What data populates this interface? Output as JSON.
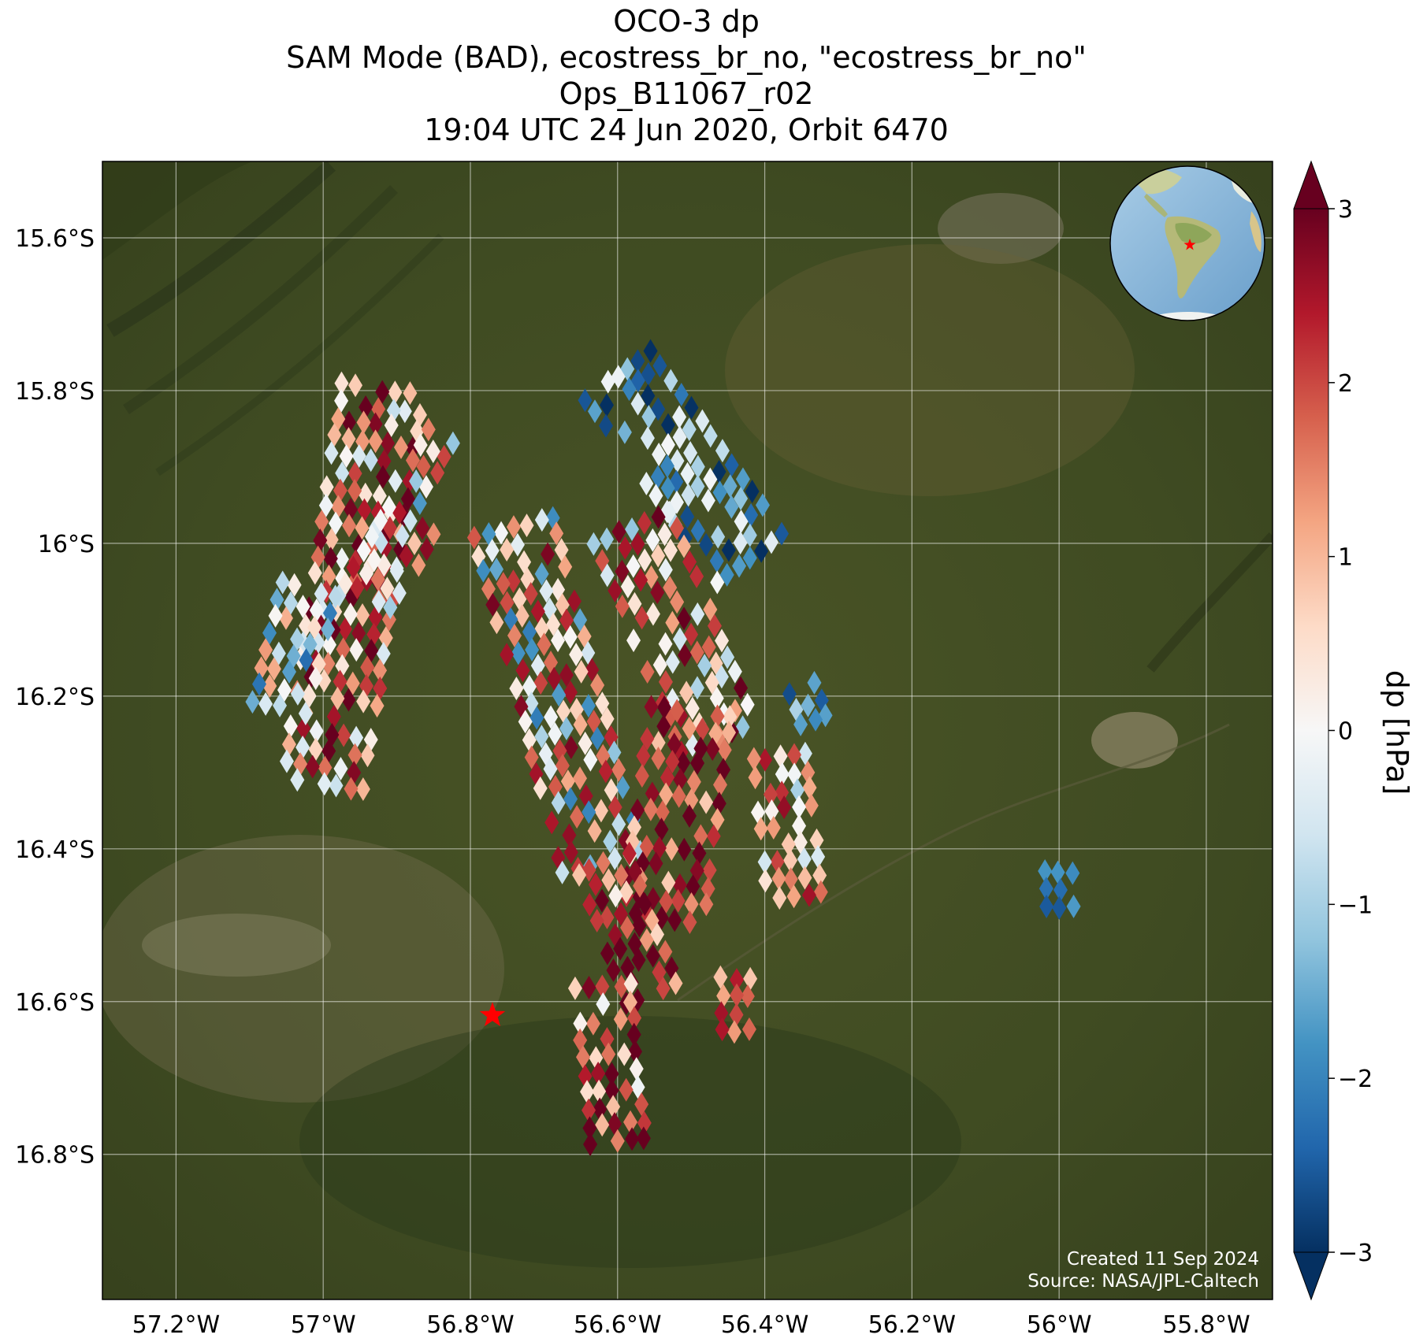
{
  "title": {
    "line1": "OCO-3 dp",
    "line2": "SAM Mode (BAD), ecostress_br_no, \"ecostress_br_no\"",
    "line3": "Ops_B11067_r02",
    "line4": "19:04 UTC 24 Jun 2020, Orbit 6470"
  },
  "map": {
    "lon_range": [
      -57.3,
      -55.71
    ],
    "lat_range": [
      -16.99,
      -15.5
    ],
    "lat_ticks": [
      {
        "value": -15.6,
        "label": "15.6°S"
      },
      {
        "value": -15.8,
        "label": "15.8°S"
      },
      {
        "value": -16.0,
        "label": "16°S"
      },
      {
        "value": -16.2,
        "label": "16.2°S"
      },
      {
        "value": -16.4,
        "label": "16.4°S"
      },
      {
        "value": -16.6,
        "label": "16.6°S"
      },
      {
        "value": -16.8,
        "label": "16.8°S"
      }
    ],
    "lon_ticks": [
      {
        "value": -57.2,
        "label": "57.2°W"
      },
      {
        "value": -57.0,
        "label": "57°W"
      },
      {
        "value": -56.8,
        "label": "56.8°W"
      },
      {
        "value": -56.6,
        "label": "56.6°W"
      },
      {
        "value": -56.4,
        "label": "56.4°W"
      },
      {
        "value": -56.2,
        "label": "56.2°W"
      },
      {
        "value": -56.0,
        "label": "56°W"
      },
      {
        "value": -55.8,
        "label": "55.8°W"
      }
    ],
    "target": {
      "lon": -56.77,
      "lat": -16.618,
      "color": "#ff0000"
    },
    "created": "Created 11 Sep 2024",
    "source": "Source: NASA/JPL-Caltech"
  },
  "colorbar": {
    "label": "dp [hPa]",
    "min": -3,
    "max": 3,
    "ticks": [
      {
        "value": 3,
        "label": "3"
      },
      {
        "value": 2,
        "label": "2"
      },
      {
        "value": 1,
        "label": "1"
      },
      {
        "value": 0,
        "label": "0"
      },
      {
        "value": -1,
        "label": "−1"
      },
      {
        "value": -2,
        "label": "−2"
      },
      {
        "value": -3,
        "label": "−3"
      }
    ],
    "colormap": [
      "#053061",
      "#2166ac",
      "#4393c3",
      "#92c5de",
      "#d1e5f0",
      "#f7f7f7",
      "#fddbc7",
      "#f4a582",
      "#d6604d",
      "#b2182b",
      "#67001f"
    ]
  },
  "chart_data": {
    "type": "heatmap",
    "title": "OCO-3 dp",
    "value_label": "dp [hPa]",
    "value_range": [
      -3,
      3
    ],
    "x_label": "",
    "y_label": "",
    "xlim": [
      -57.3,
      -55.71
    ],
    "ylim": [
      -16.99,
      -15.5
    ],
    "swaths": [
      {
        "lon_start": -56.92,
        "lat_start": -15.8,
        "lon_end": -57.0,
        "lat_end": -16.32,
        "mean_dp": 1.5,
        "spread": 1.6
      },
      {
        "lon_start": -56.84,
        "lat_start": -15.86,
        "lon_end": -56.88,
        "lat_end": -15.93,
        "mean_dp": 0.5,
        "spread": 1.6
      },
      {
        "lon_start": -56.88,
        "lat_start": -15.97,
        "lon_end": -56.94,
        "lat_end": -16.07,
        "mean_dp": 0.9,
        "spread": 1.4
      },
      {
        "lon_start": -57.02,
        "lat_start": -16.06,
        "lon_end": -57.06,
        "lat_end": -16.22,
        "mean_dp": -0.6,
        "spread": 1.4
      },
      {
        "lon_start": -56.74,
        "lat_start": -15.98,
        "lon_end": -56.62,
        "lat_end": -16.42,
        "mean_dp": 0.4,
        "spread": 1.8
      },
      {
        "lon_start": -56.6,
        "lat_start": -15.78,
        "lon_end": -56.42,
        "lat_end": -16.02,
        "mean_dp": -1.7,
        "spread": 1.2
      },
      {
        "lon_start": -56.58,
        "lat_start": -15.98,
        "lon_end": -56.46,
        "lat_end": -16.26,
        "mean_dp": 1.0,
        "spread": 1.7
      },
      {
        "lon_start": -56.5,
        "lat_start": -16.22,
        "lon_end": -56.54,
        "lat_end": -16.5,
        "mean_dp": 2.2,
        "spread": 1.1
      },
      {
        "lon_start": -56.62,
        "lat_start": -16.42,
        "lon_end": -56.55,
        "lat_end": -16.6,
        "mean_dp": 1.9,
        "spread": 1.3
      },
      {
        "lon_start": -56.62,
        "lat_start": -16.58,
        "lon_end": -56.6,
        "lat_end": -16.78,
        "mean_dp": 1.8,
        "spread": 1.4
      },
      {
        "lon_start": -56.38,
        "lat_start": -16.28,
        "lon_end": -56.36,
        "lat_end": -16.46,
        "mean_dp": 0.6,
        "spread": 1.6
      },
      {
        "lon_start": -56.35,
        "lat_start": -16.19,
        "lon_end": -56.33,
        "lat_end": -16.24,
        "mean_dp": -2.2,
        "spread": 0.9
      },
      {
        "lon_start": -56.44,
        "lat_start": -16.57,
        "lon_end": -56.44,
        "lat_end": -16.63,
        "mean_dp": 1.9,
        "spread": 0.8
      },
      {
        "lon_start": -56.0,
        "lat_start": -16.43,
        "lon_end": -56.0,
        "lat_end": -16.48,
        "mean_dp": -2.0,
        "spread": 0.4
      }
    ]
  }
}
